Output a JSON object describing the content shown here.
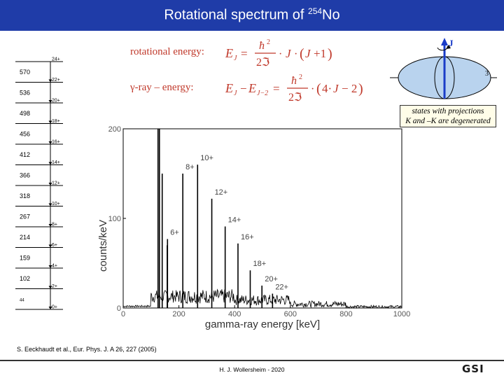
{
  "header": {
    "title_prefix": "Rotational spectrum of ",
    "title_isotope_mass": "254",
    "title_element": "No"
  },
  "formulas": {
    "rotational_label": "rotational energy:",
    "rotational_expr": "E_J = ħ²/2ℑ · J·(J+1)",
    "gamma_label": "γ-ray – energy:",
    "gamma_expr": "E_J − E_{J−2} = ħ²/2ℑ · (4·J − 2)"
  },
  "spheroid": {
    "j_label": "J",
    "axis_label": "3",
    "caption_line1": "states with projections",
    "caption_line2": "K and –K are degenerated"
  },
  "level_scheme": {
    "levels": [
      {
        "spin": "24+",
        "gap": ""
      },
      {
        "spin": "22+",
        "gap": "570"
      },
      {
        "spin": "20+",
        "gap": "536"
      },
      {
        "spin": "18+",
        "gap": "498"
      },
      {
        "spin": "16+",
        "gap": "456"
      },
      {
        "spin": "14+",
        "gap": "412"
      },
      {
        "spin": "12+",
        "gap": "366"
      },
      {
        "spin": "10+",
        "gap": "318"
      },
      {
        "spin": "8+",
        "gap": "267"
      },
      {
        "spin": "6+",
        "gap": "214"
      },
      {
        "spin": "4+",
        "gap": "159"
      },
      {
        "spin": "2+",
        "gap": "102"
      },
      {
        "spin": "0+",
        "gap": "44"
      }
    ]
  },
  "chart_data": {
    "type": "line",
    "title": "",
    "xlabel": "gamma-ray energy [keV]",
    "ylabel": "counts/keV",
    "xlim": [
      0,
      1000
    ],
    "ylim": [
      0,
      200
    ],
    "x_ticks": [
      "0",
      "200",
      "400",
      "600",
      "800",
      "1000"
    ],
    "y_ticks": [
      "0",
      "100",
      "200"
    ],
    "peaks": [
      {
        "label": "6+",
        "energy": 159,
        "counts": 77
      },
      {
        "label": "8+",
        "energy": 214,
        "counts": 150
      },
      {
        "label": "10+",
        "energy": 267,
        "counts": 160
      },
      {
        "label": "12+",
        "energy": 318,
        "counts": 122
      },
      {
        "label": "14+",
        "energy": 366,
        "counts": 91
      },
      {
        "label": "16+",
        "energy": 412,
        "counts": 72
      },
      {
        "label": "18+",
        "energy": 456,
        "counts": 42
      },
      {
        "label": "20+",
        "energy": 498,
        "counts": 25
      },
      {
        "label": "22+",
        "energy": 536,
        "counts": 16
      }
    ],
    "low_energy_peaks": [
      {
        "energy": 125,
        "counts": 200
      },
      {
        "energy": 130,
        "counts": 200
      },
      {
        "energy": 140,
        "counts": 150
      },
      {
        "energy": 158,
        "counts": 70
      }
    ]
  },
  "reference": "S. Eeckhaudt et al., Eur. Phys. J. A 26, 227 (2005)",
  "footer": {
    "author": "H. J. Wollersheim - 2020",
    "logo": "GSI"
  },
  "colors": {
    "title_bar": "#1f3ca8",
    "formula": "#c0392b",
    "spheroid_fill": "#b9d3ee",
    "axis_arrow": "#1a3cc8"
  }
}
